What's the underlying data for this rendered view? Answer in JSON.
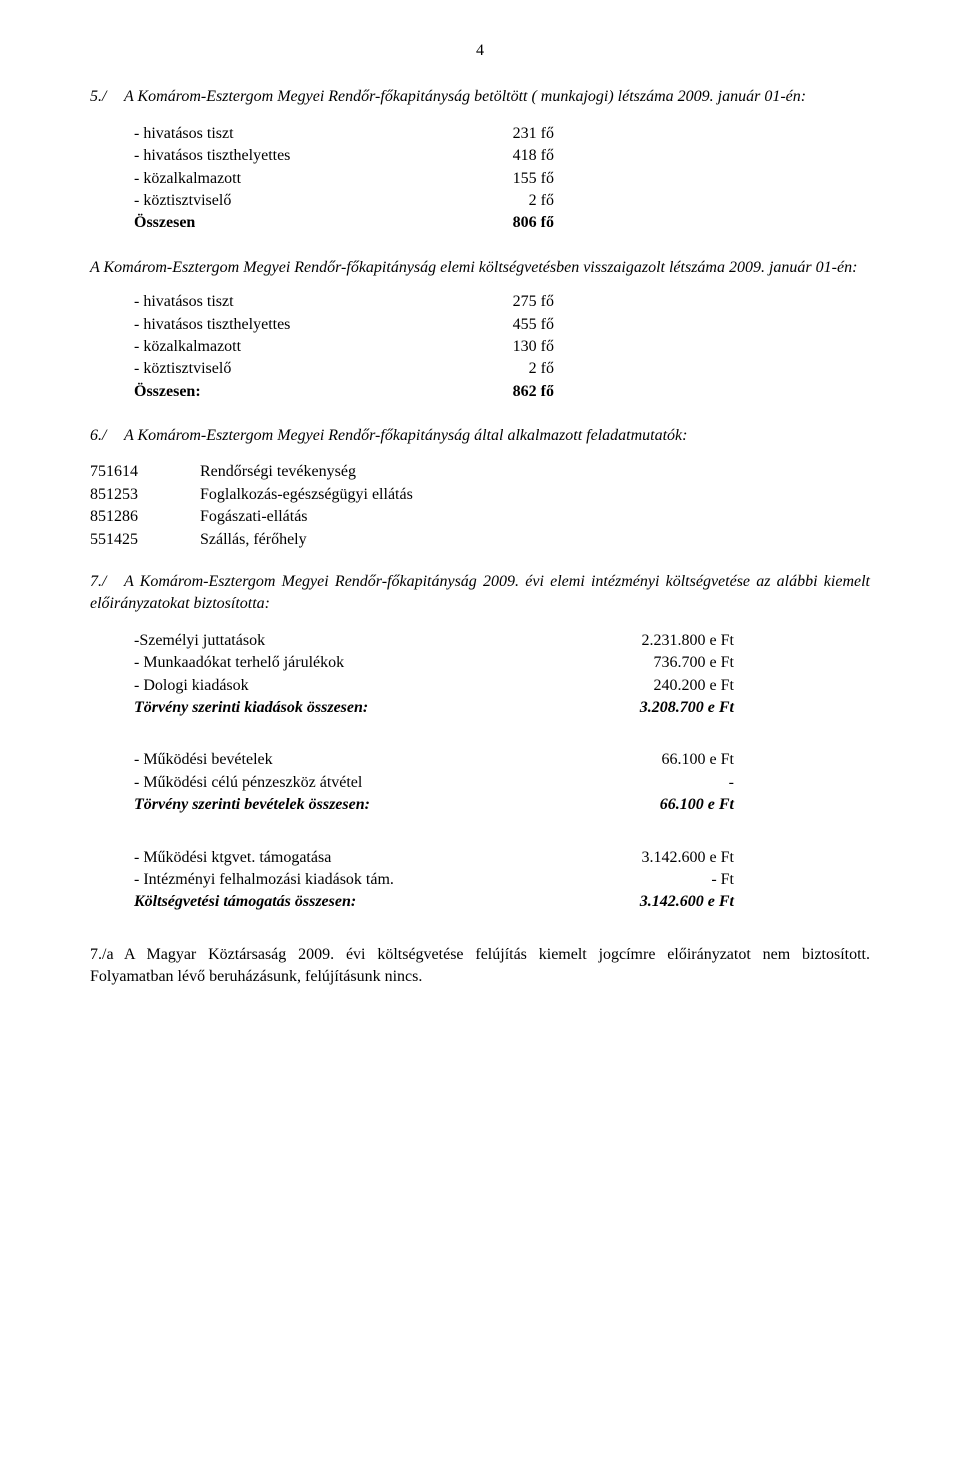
{
  "page_number": "4",
  "section5": {
    "intro_num": "5./",
    "intro_text": "A Komárom-Esztergom Megyei Rendőr-főkapitányság betöltött ( munkajogi) létszáma 2009. január 01-én:",
    "rows": [
      {
        "label": "- hivatásos tiszt",
        "value": "231 fő"
      },
      {
        "label": "- hivatásos tiszthelyettes",
        "value": "418 fő"
      },
      {
        "label": "- közalkalmazott",
        "value": "155 fő"
      },
      {
        "label": "- köztisztviselő",
        "value": "2 fő"
      }
    ],
    "sum_label": "Összesen",
    "sum_value": "806 fő"
  },
  "section5b": {
    "intro_text": "A Komárom-Esztergom Megyei Rendőr-főkapitányság elemi költségvetésben visszaigazolt létszáma 2009. január 01-én:",
    "rows": [
      {
        "label": "- hivatásos tiszt",
        "value": "275 fő"
      },
      {
        "label": "- hivatásos tiszthelyettes",
        "value": "455 fő"
      },
      {
        "label": "- közalkalmazott",
        "value": "130 fő"
      },
      {
        "label": "- köztisztviselő",
        "value": "2 fő"
      }
    ],
    "sum_label": "Összesen:",
    "sum_value": "862 fő"
  },
  "section6": {
    "intro_num": "6./",
    "intro_text": "A Komárom-Esztergom Megyei Rendőr-főkapitányság által alkalmazott feladatmutatók:",
    "rows": [
      {
        "code": "751614",
        "txt": "Rendőrségi tevékenység"
      },
      {
        "code": "851253",
        "txt": "Foglalkozás-egészségügyi ellátás"
      },
      {
        "code": "851286",
        "txt": "Fogászati-ellátás"
      },
      {
        "code": "551425",
        "txt": "Szállás, férőhely"
      }
    ]
  },
  "section7": {
    "intro_num": "7./",
    "intro_text": "A Komárom-Esztergom Megyei Rendőr-főkapitányság 2009. évi elemi intézményi költségvetése az alábbi kiemelt előirányzatokat biztosította:",
    "block1": {
      "rows": [
        {
          "label": "-Személyi juttatások",
          "value": "2.231.800 e Ft"
        },
        {
          "label": "- Munkaadókat terhelő járulékok",
          "value": "736.700 e Ft"
        },
        {
          "label": "- Dologi kiadások",
          "value": "240.200 e Ft"
        }
      ],
      "sum_label": "Törvény szerinti kiadások összesen:",
      "sum_value": "3.208.700 e Ft"
    },
    "block2": {
      "rows": [
        {
          "label": "- Működési bevételek",
          "value": "66.100 e Ft"
        },
        {
          "label": "- Működési célú pénzeszköz átvétel",
          "value": "-"
        }
      ],
      "sum_label": "Törvény szerinti bevételek összesen:",
      "sum_value": "66.100 e Ft"
    },
    "block3": {
      "rows": [
        {
          "label": "- Működési ktgvet. támogatása",
          "value": "3.142.600 e Ft"
        },
        {
          "label": "- Intézményi felhalmozási kiadások tám.",
          "value": "- Ft"
        }
      ],
      "sum_label": "Költségvetési támogatás összesen:",
      "sum_value": "3.142.600 e Ft"
    }
  },
  "section7a": {
    "num": "7./a",
    "text": "A Magyar Köztársaság 2009. évi költségvetése felújítás kiemelt jogcímre előirányzatot nem biztosított. Folyamatban lévő beruházásunk, felújításunk nincs."
  }
}
